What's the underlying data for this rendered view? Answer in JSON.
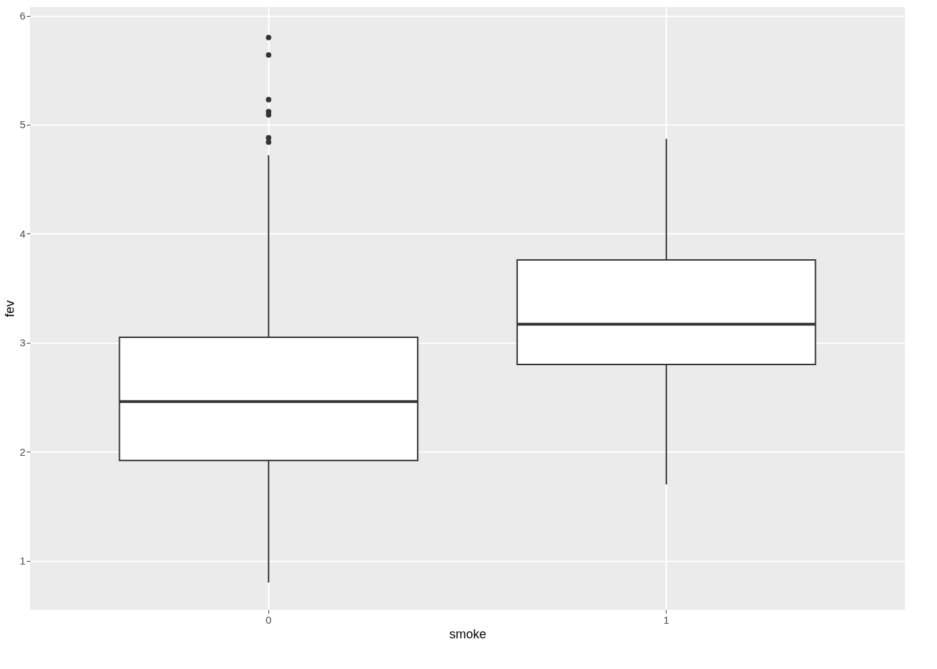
{
  "chart_data": {
    "type": "box",
    "xlabel": "smoke",
    "ylabel": "fev",
    "categories": [
      "0",
      "1"
    ],
    "boxes": [
      {
        "low": 0.8,
        "q1": 1.92,
        "median": 2.46,
        "q3": 3.05,
        "high": 4.72,
        "outliers": [
          5.8,
          5.64,
          5.23,
          5.12,
          5.09,
          4.88,
          4.84
        ]
      },
      {
        "low": 1.7,
        "q1": 2.8,
        "median": 3.17,
        "q3": 3.76,
        "high": 4.87
      }
    ],
    "ylim": [
      0.55,
      6.08
    ],
    "yticks": [
      1,
      2,
      3,
      4,
      5,
      6
    ],
    "grid": true
  }
}
